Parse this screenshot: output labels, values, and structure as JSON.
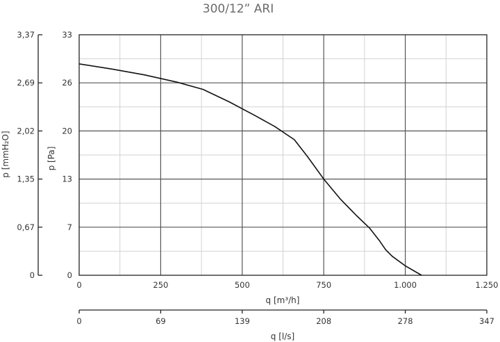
{
  "chart_data": {
    "type": "line",
    "title": "300/12” ARI",
    "xlabel": "q [m³/h]",
    "ylabel": "p [Pa]",
    "ylabel_secondary": "p [mmH₂O]",
    "xlabel_secondary": "q [l/s]",
    "xlim": [
      0,
      1250
    ],
    "ylim": [
      0,
      33
    ],
    "x_ticks": [
      "0",
      "250",
      "500",
      "750",
      "1.000",
      "1.250"
    ],
    "y_ticks": [
      "0",
      "7",
      "13",
      "20",
      "26",
      "33"
    ],
    "y2_ticks": [
      "0",
      "0,67",
      "1,35",
      "2,02",
      "2,69",
      "3,37"
    ],
    "x2_ticks": [
      "0",
      "69",
      "139",
      "208",
      "278",
      "347"
    ],
    "grid": true,
    "series": [
      {
        "color": "#111111",
        "x": [
          0,
          100,
          200,
          300,
          380,
          460,
          540,
          600,
          660,
          700,
          750,
          800,
          850,
          890,
          920,
          940,
          960,
          1000,
          1050
        ],
        "y": [
          29,
          28.3,
          27.5,
          26.5,
          25.5,
          23.8,
          21.9,
          20.4,
          18.6,
          16.3,
          13.2,
          10.5,
          8.2,
          6.5,
          4.8,
          3.5,
          2.6,
          1.3,
          0
        ]
      }
    ]
  }
}
